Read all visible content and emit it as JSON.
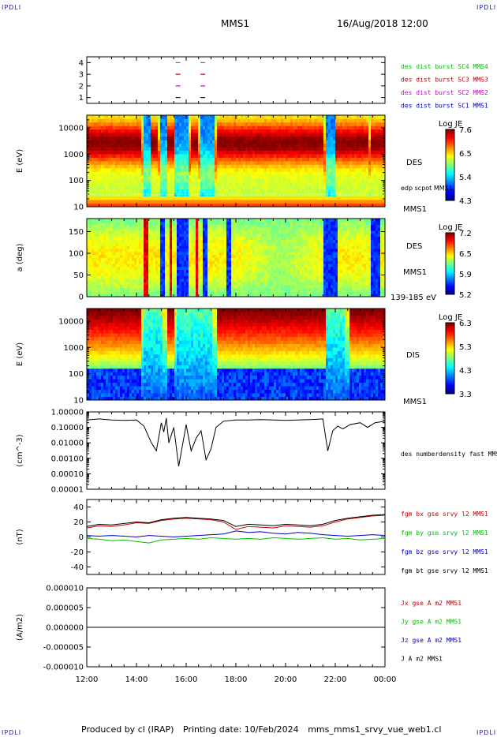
{
  "header": {
    "mission": "MMS1",
    "date": "16/Aug/2018 12:00",
    "corner_tl": "IPDLI",
    "corner_tr": "IPDLI",
    "corner_bl": "IPDLI",
    "corner_br": "IPDLI"
  },
  "footer": {
    "produced": "Produced by cl (IRAP)",
    "printed": "Printing date: 10/Feb/2024",
    "file": "mms_mms1_srvy_vue_web1.cl"
  },
  "colors": {
    "blue": "#0000c8",
    "magenta": "#c800c8",
    "red": "#c80000",
    "green": "#00c000",
    "black": "#000000"
  },
  "chart_data": [
    {
      "type": "scatter",
      "id": "burst",
      "xlabel": "",
      "ylabel": "",
      "ylim": [
        0.5,
        4.5
      ],
      "yticks": [
        "1",
        "2",
        "3",
        "4"
      ],
      "series": [
        {
          "name": "des dist burst SC1 MMS1",
          "color": "#0000c8",
          "y": 1,
          "x": [
            15.67,
            16.67
          ]
        },
        {
          "name": "des dist burst SC2 MMS2",
          "color": "#c800c8",
          "y": 2,
          "x": [
            15.67,
            16.67
          ]
        },
        {
          "name": "des dist burst SC3 MMS3",
          "color": "#c80000",
          "y": 3,
          "x": [
            15.67,
            16.67
          ]
        },
        {
          "name": "des dist burst SC4 MMS4",
          "color": "#00c000",
          "y": 4,
          "x": [
            15.67,
            16.67
          ]
        }
      ]
    },
    {
      "type": "heatmap",
      "id": "des_e",
      "ylabel": "E (eV)",
      "yscale": "log",
      "ylim": [
        10,
        30000
      ],
      "yticks": [
        "10",
        "100",
        "1000",
        "10000"
      ],
      "right_labels": [
        "DES",
        "edp scpot MMS1",
        "MMS1"
      ],
      "colorbar": {
        "title": "Log JE",
        "min": 4.3,
        "max": 7.6,
        "ticks": [
          "7.6",
          "6.5",
          "5.4",
          "4.3"
        ]
      },
      "hot_intervals": [
        [
          12.0,
          14.2
        ],
        [
          14.6,
          14.9
        ],
        [
          15.2,
          15.5
        ],
        [
          16.2,
          16.5
        ],
        [
          17.2,
          21.5
        ],
        [
          22.0,
          23.3
        ],
        [
          23.4,
          24.0
        ]
      ],
      "cold_intervals": [
        [
          14.3,
          14.6
        ],
        [
          15.0,
          15.2
        ],
        [
          15.55,
          16.1
        ],
        [
          16.6,
          17.1
        ],
        [
          21.6,
          22.0
        ]
      ]
    },
    {
      "type": "heatmap",
      "id": "des_pa",
      "ylabel": "a (deg)",
      "ylim": [
        0,
        180
      ],
      "yticks": [
        "0",
        "50",
        "100",
        "150"
      ],
      "right_labels": [
        "DES",
        "MMS1",
        "139-185 eV"
      ],
      "colorbar": {
        "title": "Log JE",
        "min": 5.2,
        "max": 7.2,
        "ticks": [
          "7.2",
          "6.5",
          "5.9",
          "5.2"
        ]
      },
      "hot_intervals": [
        [
          14.3,
          14.5
        ],
        [
          15.3,
          15.4
        ],
        [
          16.4,
          16.5
        ]
      ],
      "cold_intervals": [
        [
          15.0,
          15.1
        ],
        [
          15.6,
          16.1
        ],
        [
          16.7,
          16.9
        ],
        [
          17.6,
          17.8
        ],
        [
          21.5,
          22.1
        ],
        [
          23.4,
          23.8
        ]
      ]
    },
    {
      "type": "heatmap",
      "id": "dis_e",
      "ylabel": "E (eV)",
      "yscale": "log",
      "ylim": [
        10,
        30000
      ],
      "yticks": [
        "10",
        "100",
        "1000",
        "10000"
      ],
      "right_labels": [
        "DIS",
        "MMS1"
      ],
      "colorbar": {
        "title": "Log JE",
        "min": 3.3,
        "max": 6.3,
        "ticks": [
          "6.3",
          "5.3",
          "4.3",
          "3.3"
        ]
      },
      "hot_intervals": [
        [
          12.0,
          14.2
        ],
        [
          15.2,
          15.5
        ],
        [
          17.2,
          21.6
        ],
        [
          22.6,
          24.0
        ]
      ],
      "cold_intervals": [
        [
          14.3,
          15.0
        ],
        [
          15.6,
          17.0
        ],
        [
          21.6,
          22.4
        ]
      ]
    },
    {
      "type": "line",
      "id": "density",
      "ylabel": "(cm^-3)",
      "yscale": "log",
      "ylim": [
        1e-05,
        1.0
      ],
      "yticks": [
        "1.00000",
        "0.10000",
        "0.01000",
        "0.00100",
        "0.00010",
        "0.00001"
      ],
      "series": [
        {
          "name": "des numberdensity fast MMS1",
          "color": "#000000",
          "x": [
            12.0,
            12.5,
            13.0,
            13.5,
            14.0,
            14.3,
            14.6,
            14.8,
            15.0,
            15.1,
            15.2,
            15.3,
            15.5,
            15.7,
            16.0,
            16.2,
            16.4,
            16.6,
            16.8,
            17.0,
            17.2,
            17.5,
            18.0,
            18.5,
            19.0,
            19.5,
            20.0,
            20.5,
            21.0,
            21.5,
            21.7,
            21.9,
            22.1,
            22.3,
            22.6,
            23.0,
            23.3,
            23.6,
            24.0
          ],
          "y": [
            0.3,
            0.35,
            0.3,
            0.28,
            0.3,
            0.12,
            0.01,
            0.003,
            0.2,
            0.05,
            0.4,
            0.01,
            0.1,
            0.0003,
            0.15,
            0.003,
            0.02,
            0.06,
            0.0008,
            0.004,
            0.1,
            0.25,
            0.3,
            0.3,
            0.32,
            0.3,
            0.28,
            0.3,
            0.32,
            0.35,
            0.003,
            0.06,
            0.12,
            0.08,
            0.15,
            0.2,
            0.1,
            0.2,
            0.25
          ]
        }
      ]
    },
    {
      "type": "line",
      "id": "bfield",
      "ylabel": "(nT)",
      "ylim": [
        -50,
        50
      ],
      "yticks": [
        "40",
        "20",
        "0",
        "-20",
        "-40"
      ],
      "series": [
        {
          "name": "fgm bx gse srvy l2 MMS1",
          "color": "#c80000",
          "x": [
            12.0,
            12.5,
            13.0,
            13.5,
            14.0,
            14.5,
            15.0,
            15.5,
            16.0,
            16.5,
            17.0,
            17.5,
            18.0,
            18.5,
            19.0,
            19.5,
            20.0,
            20.5,
            21.0,
            21.5,
            22.0,
            22.5,
            23.0,
            23.5,
            24.0
          ],
          "y": [
            12,
            15,
            14,
            16,
            19,
            18,
            22,
            24,
            25,
            24,
            23,
            20,
            10,
            14,
            13,
            12,
            15,
            14,
            13,
            15,
            20,
            24,
            26,
            28,
            29
          ]
        },
        {
          "name": "fgm by gse srvy l2 MMS1",
          "color": "#00c000",
          "x": [
            12.0,
            12.5,
            13.0,
            13.5,
            14.0,
            14.5,
            15.0,
            15.5,
            16.0,
            16.5,
            17.0,
            17.5,
            18.0,
            18.5,
            19.0,
            19.5,
            20.0,
            20.5,
            21.0,
            21.5,
            22.0,
            22.5,
            23.0,
            23.5,
            24.0
          ],
          "y": [
            -2,
            -3,
            -5,
            -4,
            -6,
            -8,
            -4,
            -3,
            -2,
            -3,
            -1,
            -2,
            -3,
            -2,
            -3,
            -1,
            -2,
            -3,
            -2,
            -1,
            -3,
            -2,
            -4,
            -3,
            -2
          ]
        },
        {
          "name": "fgm bz gse srvy l2 MMS1",
          "color": "#0000c8",
          "x": [
            12.0,
            12.5,
            13.0,
            13.5,
            14.0,
            14.5,
            15.0,
            15.5,
            16.0,
            16.5,
            17.0,
            17.5,
            18.0,
            18.5,
            19.0,
            19.5,
            20.0,
            20.5,
            21.0,
            21.5,
            22.0,
            22.5,
            23.0,
            23.5,
            24.0
          ],
          "y": [
            2,
            1,
            2,
            1,
            0,
            2,
            1,
            0,
            1,
            2,
            3,
            4,
            8,
            6,
            7,
            5,
            4,
            6,
            5,
            3,
            2,
            1,
            2,
            3,
            2
          ]
        },
        {
          "name": "fgm bt gse srvy l2 MMS1",
          "color": "#000000",
          "x": [
            12.0,
            12.5,
            13.0,
            13.5,
            14.0,
            14.5,
            15.0,
            15.5,
            16.0,
            16.5,
            17.0,
            17.5,
            18.0,
            18.5,
            19.0,
            19.5,
            20.0,
            20.5,
            21.0,
            21.5,
            22.0,
            22.5,
            23.0,
            23.5,
            24.0
          ],
          "y": [
            14,
            17,
            16,
            18,
            20,
            19,
            23,
            25,
            26,
            25,
            24,
            22,
            14,
            17,
            16,
            15,
            17,
            16,
            15,
            17,
            22,
            25,
            27,
            29,
            30
          ]
        }
      ]
    },
    {
      "type": "line",
      "id": "current",
      "ylabel": "(A/m2)",
      "ylim": [
        -1e-05,
        1e-05
      ],
      "yticks": [
        "0.000010",
        "0.000005",
        "0.000000",
        "-0.000005",
        "-0.000010"
      ],
      "series": [
        {
          "name": "Jx gse A m2 MMS1",
          "color": "#c80000",
          "x": [
            12.0,
            24.0
          ],
          "y": [
            0,
            0
          ]
        },
        {
          "name": "Jy gse A m2 MMS1",
          "color": "#00c000",
          "x": [
            12.0,
            24.0
          ],
          "y": [
            0,
            0
          ]
        },
        {
          "name": "Jz gse A m2 MMS1",
          "color": "#0000c8",
          "x": [
            12.0,
            24.0
          ],
          "y": [
            0,
            0
          ]
        },
        {
          "name": "J A m2 MMS1",
          "color": "#000000",
          "x": [
            12.0,
            24.0
          ],
          "y": [
            0,
            0
          ]
        }
      ]
    }
  ],
  "time_axis": {
    "xlim": [
      12.0,
      24.0
    ],
    "ticks": [
      "12:00",
      "14:00",
      "16:00",
      "18:00",
      "20:00",
      "22:00",
      "00:00"
    ]
  }
}
